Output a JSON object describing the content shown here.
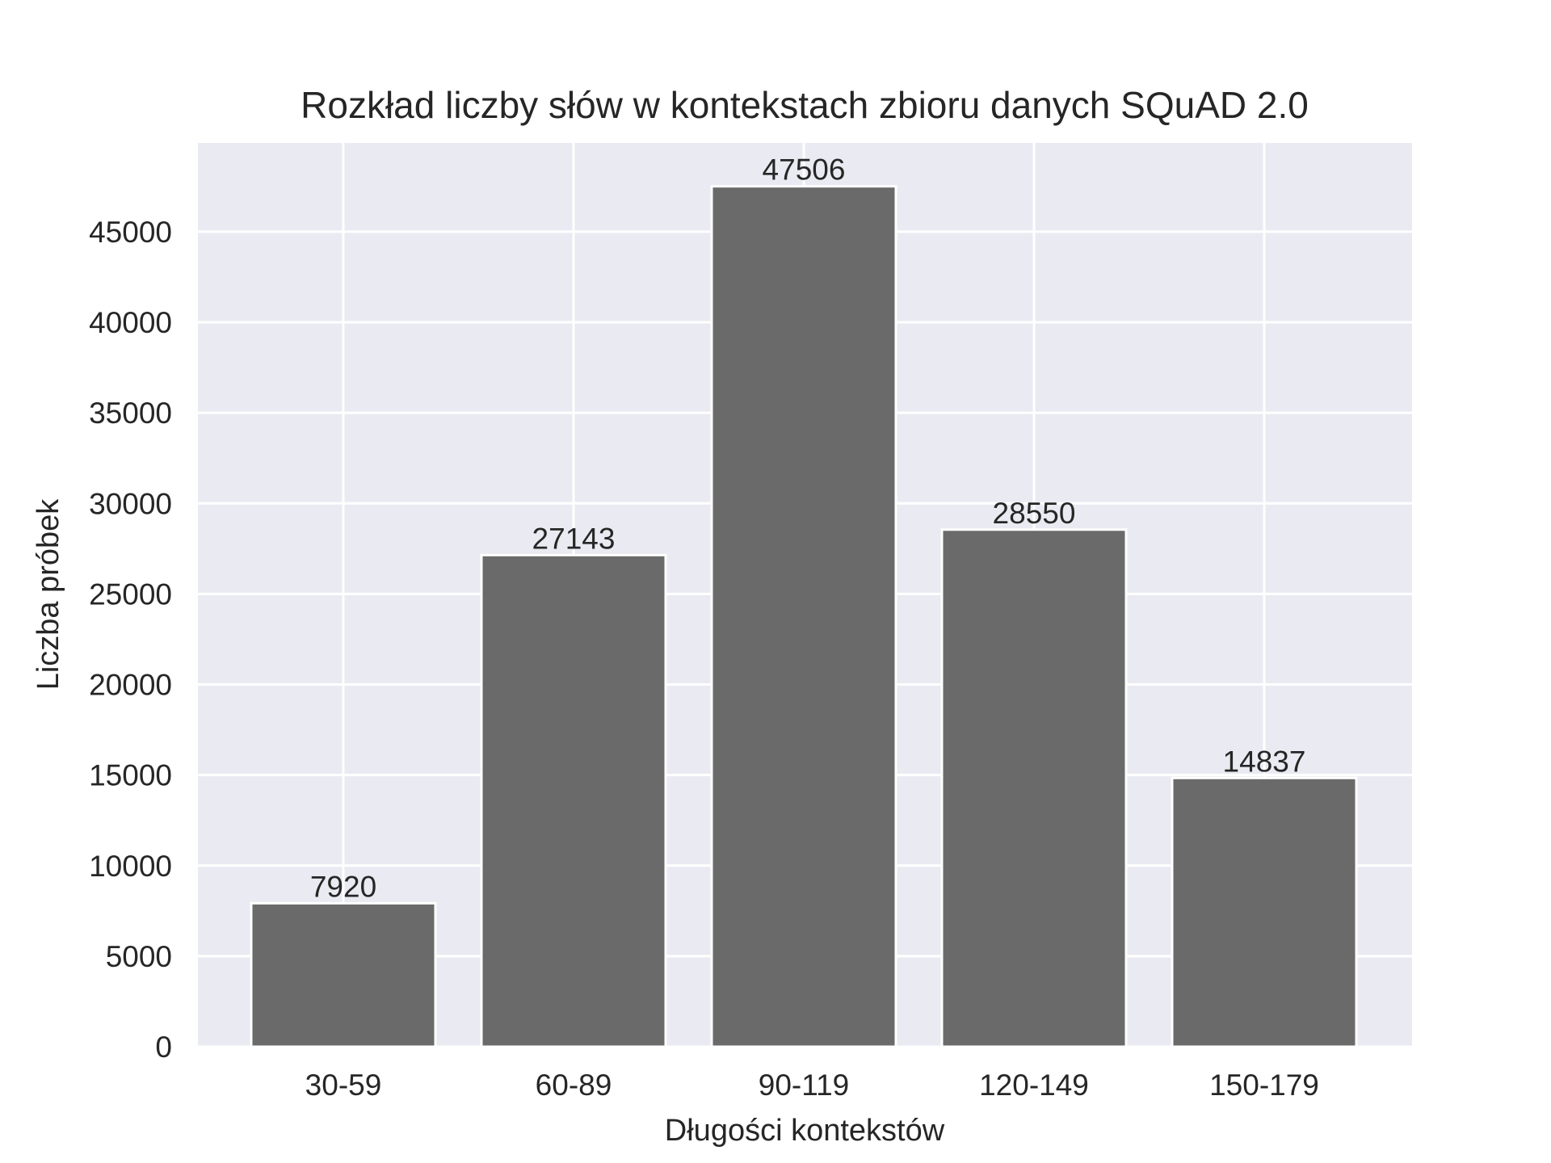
{
  "chart_data": {
    "type": "bar",
    "title": "Rozkład liczby słów w kontekstach zbioru danych SQuAD 2.0",
    "xlabel": "Długości kontekstów",
    "ylabel": "Liczba próbek",
    "categories": [
      "30-59",
      "60-89",
      "90-119",
      "120-149",
      "150-179"
    ],
    "values": [
      7920,
      27143,
      47506,
      28550,
      14837
    ],
    "data_labels": [
      "7920",
      "27143",
      "47506",
      "28550",
      "14837"
    ],
    "ylim": [
      0,
      49900
    ],
    "yticks": [
      0,
      5000,
      10000,
      15000,
      20000,
      25000,
      30000,
      35000,
      40000,
      45000
    ],
    "ytick_labels": [
      "0",
      "5000",
      "10000",
      "15000",
      "20000",
      "25000",
      "30000",
      "35000",
      "40000",
      "45000"
    ],
    "grid": true,
    "colors": {
      "bar": "#6a6a6a",
      "bar_edge": "#ffffff",
      "plot_background": "#eaeaf2",
      "grid": "#ffffff",
      "text": "#262626"
    }
  }
}
